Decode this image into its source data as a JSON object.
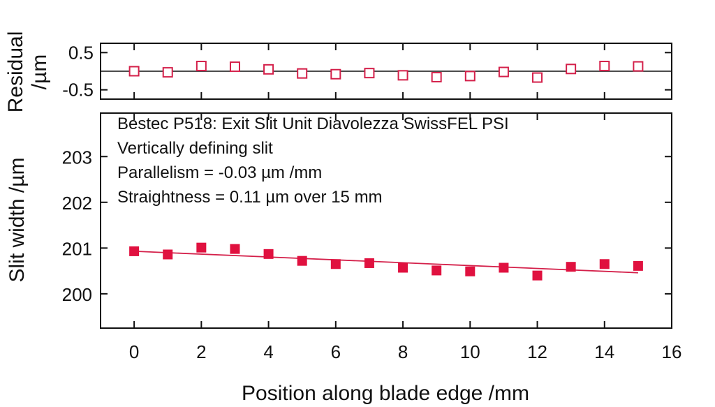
{
  "chart_data": [
    {
      "id": "residual-panel",
      "type": "scatter",
      "ylabel_lines": [
        "Residual",
        "/µm"
      ],
      "xlim": [
        -1,
        16
      ],
      "ylim": [
        -0.75,
        0.75
      ],
      "yticks": [
        0.5,
        -0.5
      ],
      "ytick_labels": [
        "0.5",
        "-0.5"
      ],
      "zero_line": true,
      "marker": "open-square",
      "color": "#d4204a",
      "x": [
        0,
        1,
        2,
        3,
        4,
        5,
        6,
        7,
        8,
        9,
        10,
        11,
        12,
        13,
        14,
        15
      ],
      "y": [
        0.0,
        -0.03,
        0.14,
        0.12,
        0.05,
        -0.06,
        -0.08,
        -0.05,
        -0.11,
        -0.16,
        -0.13,
        -0.02,
        -0.17,
        0.06,
        0.14,
        0.13
      ]
    },
    {
      "id": "main-panel",
      "type": "scatter",
      "ylabel": "Slit width /µm",
      "xlabel": "Position along blade edge /mm",
      "xlim": [
        -1,
        16
      ],
      "ylim": [
        199.25,
        203.95
      ],
      "xticks": [
        0,
        2,
        4,
        6,
        8,
        10,
        12,
        14,
        16
      ],
      "xtick_labels": [
        "0",
        "2",
        "4",
        "6",
        "8",
        "10",
        "12",
        "14",
        "16"
      ],
      "yticks": [
        200,
        201,
        202,
        203
      ],
      "ytick_labels": [
        "200",
        "201",
        "202",
        "203"
      ],
      "marker": "filled-square",
      "color": "#e0113f",
      "x": [
        0,
        1,
        2,
        3,
        4,
        5,
        6,
        7,
        8,
        9,
        10,
        11,
        12,
        13,
        14,
        15
      ],
      "y": [
        200.93,
        200.86,
        201.01,
        200.98,
        200.87,
        200.72,
        200.65,
        200.67,
        200.57,
        200.51,
        200.49,
        200.57,
        200.4,
        200.59,
        200.65,
        200.61
      ],
      "fit_line": {
        "x": [
          0,
          15
        ],
        "y": [
          200.93,
          200.46
        ]
      },
      "annotation": [
        "Bestec P518: Exit Slit Unit Diavolezza SwissFEL PSI",
        "Vertically defining slit",
        "Parallelism = -0.03 µm /mm",
        "Straightness = 0.11 µm over 15 mm"
      ]
    }
  ]
}
